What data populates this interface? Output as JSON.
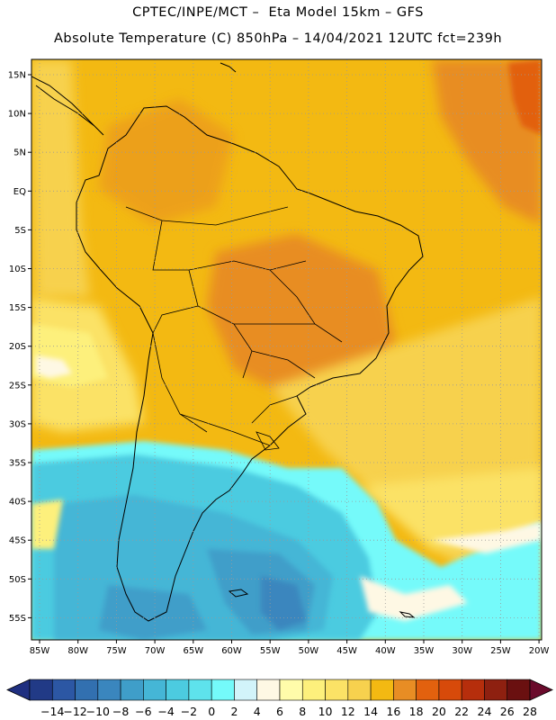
{
  "header": {
    "line1": "CPTEC/INPE/MCT –  Eta Model 15km – GFS",
    "line2": "Absolute Temperature (C) 850hPa – 14/04/2021 12UTC fct=239h"
  },
  "map": {
    "lat_labels": [
      "15N",
      "10N",
      "5N",
      "EQ",
      "5S",
      "10S",
      "15S",
      "20S",
      "25S",
      "30S",
      "35S",
      "40S",
      "45S",
      "50S",
      "55S"
    ],
    "lon_labels": [
      "85W",
      "80W",
      "75W",
      "70W",
      "65W",
      "60W",
      "55W",
      "50W",
      "45W",
      "40W",
      "35W",
      "30W",
      "25W",
      "20W"
    ],
    "grid": "on"
  },
  "colorbar": {
    "labels": [
      "-14",
      "-12",
      "-10",
      "-8",
      "-6",
      "-4",
      "-2",
      "0",
      "2",
      "4",
      "6",
      "8",
      "10",
      "12",
      "14",
      "16",
      "18",
      "20",
      "22",
      "24",
      "26",
      "28"
    ],
    "colors": [
      "#213a86",
      "#2c57a4",
      "#3270b0",
      "#3a86be",
      "#3f9ec9",
      "#45b6d6",
      "#4ccbe0",
      "#5ee2ec",
      "#74fafa",
      "#d2f4fa",
      "#fef8e4",
      "#fffcaa",
      "#fdf07c",
      "#fbe266",
      "#f7d14e",
      "#f3b912",
      "#e88d24",
      "#e2610e",
      "#d74a0a",
      "#b62e0c",
      "#8e2010",
      "#6a1010"
    ],
    "under_color": "#1f2f80",
    "over_color": "#6a0b2c"
  }
}
